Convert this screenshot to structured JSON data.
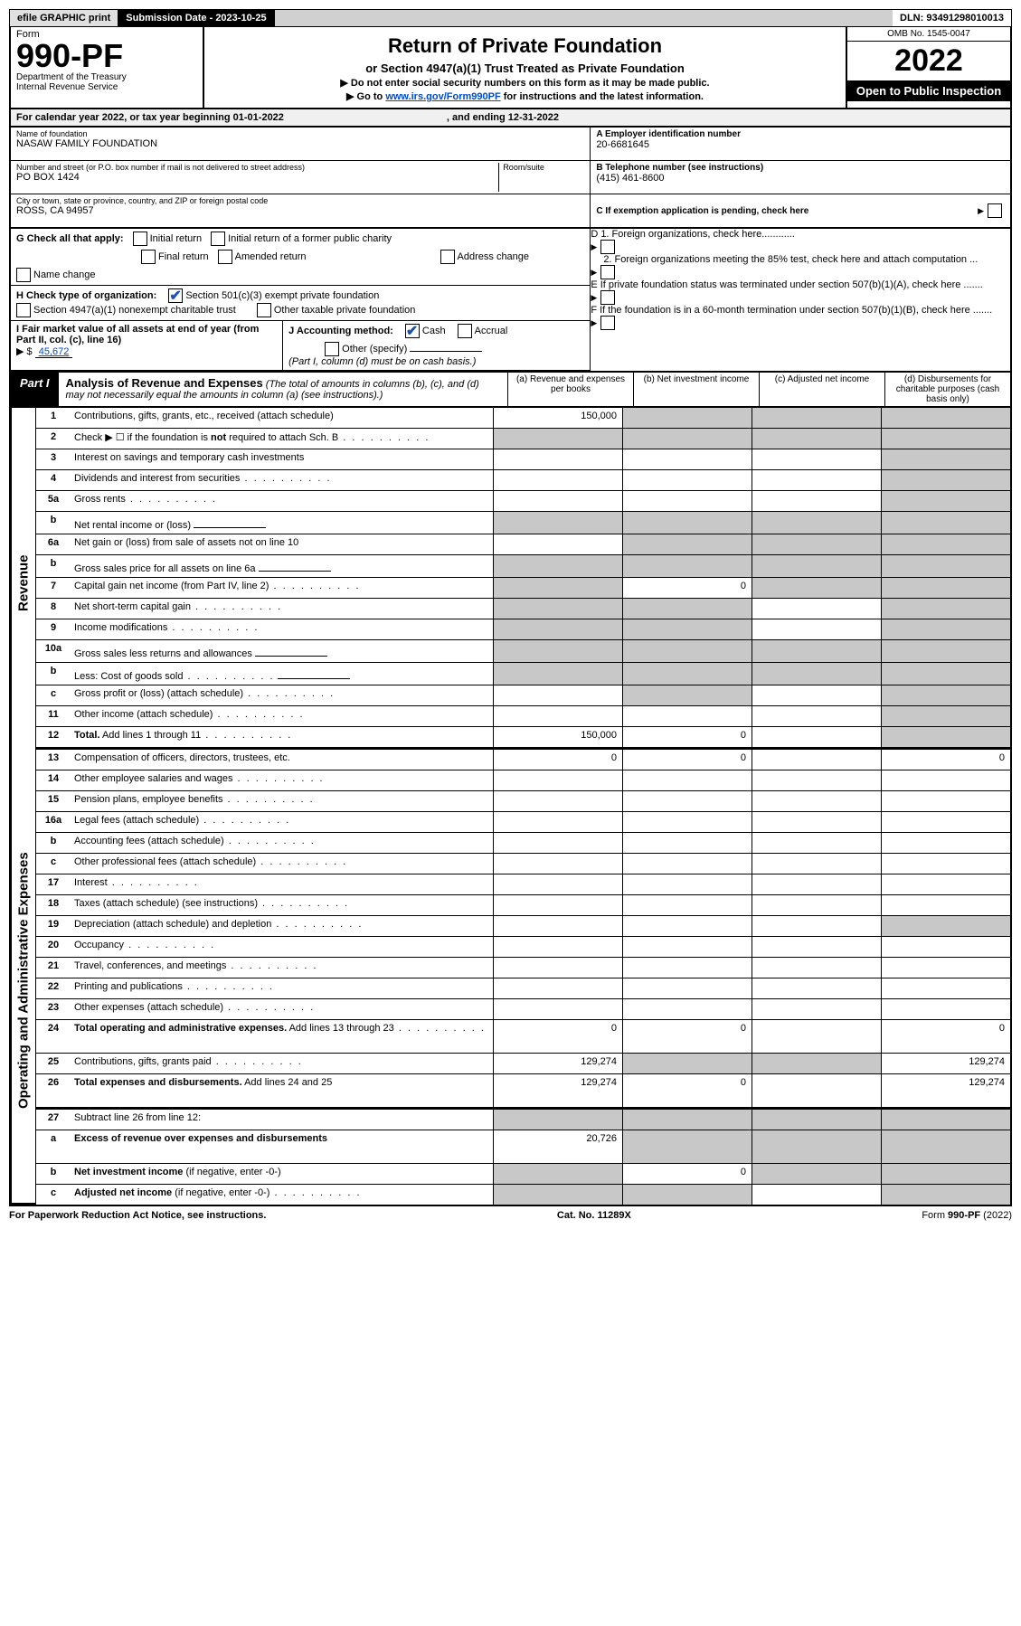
{
  "header_bar": {
    "efile": "efile GRAPHIC print",
    "submission_label": "Submission Date - 2023-10-25",
    "dln": "DLN: 93491298010013"
  },
  "form_top": {
    "form_word": "Form",
    "form_num": "990-PF",
    "dept1": "Department of the Treasury",
    "dept2": "Internal Revenue Service",
    "title": "Return of Private Foundation",
    "subtitle": "or Section 4947(a)(1) Trust Treated as Private Foundation",
    "note1": "▶ Do not enter social security numbers on this form as it may be made public.",
    "note2_pre": "▶ Go to ",
    "note2_link": "www.irs.gov/Form990PF",
    "note2_post": " for instructions and the latest information.",
    "omb": "OMB No. 1545-0047",
    "year": "2022",
    "open": "Open to Public Inspection"
  },
  "cal_year": {
    "text": "For calendar year 2022, or tax year beginning 01-01-2022",
    "ending": ", and ending 12-31-2022"
  },
  "info": {
    "name_lbl": "Name of foundation",
    "name_val": "NASAW FAMILY FOUNDATION",
    "addr_lbl": "Number and street (or P.O. box number if mail is not delivered to street address)",
    "addr_val": "PO BOX 1424",
    "room_lbl": "Room/suite",
    "city_lbl": "City or town, state or province, country, and ZIP or foreign postal code",
    "city_val": "ROSS, CA  94957",
    "a_lbl": "A Employer identification number",
    "a_val": "20-6681645",
    "b_lbl": "B Telephone number (see instructions)",
    "b_val": "(415) 461-8600",
    "c_lbl": "C If exemption application is pending, check here"
  },
  "g_section": {
    "g_label": "G Check all that apply:",
    "initial": "Initial return",
    "initial_former": "Initial return of a former public charity",
    "final": "Final return",
    "amended": "Amended return",
    "address": "Address change",
    "name_change": "Name change"
  },
  "h_section": {
    "label": "H Check type of organization:",
    "opt1": "Section 501(c)(3) exempt private foundation",
    "opt2": "Section 4947(a)(1) nonexempt charitable trust",
    "opt3": "Other taxable private foundation"
  },
  "i_section": {
    "label": "I Fair market value of all assets at end of year (from Part II, col. (c), line 16)",
    "value": "45,672",
    "prefix": "▶ $"
  },
  "j_section": {
    "label": "J Accounting method:",
    "cash": "Cash",
    "accrual": "Accrual",
    "other": "Other (specify)",
    "note": "(Part I, column (d) must be on cash basis.)"
  },
  "right_checks": {
    "d1": "D 1. Foreign organizations, check here............",
    "d2": "2. Foreign organizations meeting the 85% test, check here and attach computation ...",
    "e": "E  If private foundation status was terminated under section 507(b)(1)(A), check here .......",
    "f": "F  If the foundation is in a 60-month termination under section 507(b)(1)(B), check here ......."
  },
  "part1": {
    "label": "Part I",
    "title": "Analysis of Revenue and Expenses",
    "title_note": "(The total of amounts in columns (b), (c), and (d) may not necessarily equal the amounts in column (a) (see instructions).)",
    "col_a": "(a)   Revenue and expenses per books",
    "col_b": "(b)   Net investment income",
    "col_c": "(c)   Adjusted net income",
    "col_d": "(d)   Disbursements for charitable purposes (cash basis only)"
  },
  "side_labels": {
    "revenue": "Revenue",
    "expenses": "Operating and Administrative Expenses"
  },
  "rows": [
    {
      "num": "1",
      "desc": "Contributions, gifts, grants, etc., received (attach schedule)",
      "a": "150,000",
      "b": "shaded",
      "c": "shaded",
      "d": "shaded",
      "section": "rev"
    },
    {
      "num": "2",
      "desc": "Check ▶ ☐ if the foundation is <b>not</b> required to attach Sch. B",
      "a": "shaded",
      "b": "shaded",
      "c": "shaded",
      "d": "shaded",
      "section": "rev",
      "dots": true
    },
    {
      "num": "3",
      "desc": "Interest on savings and temporary cash investments",
      "a": "",
      "b": "",
      "c": "",
      "d": "shaded",
      "section": "rev"
    },
    {
      "num": "4",
      "desc": "Dividends and interest from securities",
      "a": "",
      "b": "",
      "c": "",
      "d": "shaded",
      "section": "rev",
      "dots": true
    },
    {
      "num": "5a",
      "desc": "Gross rents",
      "a": "",
      "b": "",
      "c": "",
      "d": "shaded",
      "section": "rev",
      "dots": true
    },
    {
      "num": "b",
      "desc": "Net rental income or (loss)",
      "a": "shaded",
      "b": "shaded",
      "c": "shaded",
      "d": "shaded",
      "section": "rev",
      "inline_input": true
    },
    {
      "num": "6a",
      "desc": "Net gain or (loss) from sale of assets not on line 10",
      "a": "",
      "b": "shaded",
      "c": "shaded",
      "d": "shaded",
      "section": "rev"
    },
    {
      "num": "b",
      "desc": "Gross sales price for all assets on line 6a",
      "a": "shaded",
      "b": "shaded",
      "c": "shaded",
      "d": "shaded",
      "section": "rev",
      "inline_input": true
    },
    {
      "num": "7",
      "desc": "Capital gain net income (from Part IV, line 2)",
      "a": "shaded",
      "b": "0",
      "c": "shaded",
      "d": "shaded",
      "section": "rev",
      "dots": true
    },
    {
      "num": "8",
      "desc": "Net short-term capital gain",
      "a": "shaded",
      "b": "shaded",
      "c": "",
      "d": "shaded",
      "section": "rev",
      "dots": true
    },
    {
      "num": "9",
      "desc": "Income modifications",
      "a": "shaded",
      "b": "shaded",
      "c": "",
      "d": "shaded",
      "section": "rev",
      "dots": true
    },
    {
      "num": "10a",
      "desc": "Gross sales less returns and allowances",
      "a": "shaded",
      "b": "shaded",
      "c": "shaded",
      "d": "shaded",
      "section": "rev",
      "inline_input": true
    },
    {
      "num": "b",
      "desc": "Less: Cost of goods sold",
      "a": "shaded",
      "b": "shaded",
      "c": "shaded",
      "d": "shaded",
      "section": "rev",
      "dots": true,
      "inline_input": true
    },
    {
      "num": "c",
      "desc": "Gross profit or (loss) (attach schedule)",
      "a": "",
      "b": "shaded",
      "c": "",
      "d": "shaded",
      "section": "rev",
      "dots": true
    },
    {
      "num": "11",
      "desc": "Other income (attach schedule)",
      "a": "",
      "b": "",
      "c": "",
      "d": "shaded",
      "section": "rev",
      "dots": true
    },
    {
      "num": "12",
      "desc": "<b>Total.</b> Add lines 1 through 11",
      "a": "150,000",
      "b": "0",
      "c": "",
      "d": "shaded",
      "section": "rev",
      "dots": true
    },
    {
      "num": "13",
      "desc": "Compensation of officers, directors, trustees, etc.",
      "a": "0",
      "b": "0",
      "c": "",
      "d": "0",
      "section": "exp"
    },
    {
      "num": "14",
      "desc": "Other employee salaries and wages",
      "a": "",
      "b": "",
      "c": "",
      "d": "",
      "section": "exp",
      "dots": true
    },
    {
      "num": "15",
      "desc": "Pension plans, employee benefits",
      "a": "",
      "b": "",
      "c": "",
      "d": "",
      "section": "exp",
      "dots": true
    },
    {
      "num": "16a",
      "desc": "Legal fees (attach schedule)",
      "a": "",
      "b": "",
      "c": "",
      "d": "",
      "section": "exp",
      "dots": true
    },
    {
      "num": "b",
      "desc": "Accounting fees (attach schedule)",
      "a": "",
      "b": "",
      "c": "",
      "d": "",
      "section": "exp",
      "dots": true
    },
    {
      "num": "c",
      "desc": "Other professional fees (attach schedule)",
      "a": "",
      "b": "",
      "c": "",
      "d": "",
      "section": "exp",
      "dots": true
    },
    {
      "num": "17",
      "desc": "Interest",
      "a": "",
      "b": "",
      "c": "",
      "d": "",
      "section": "exp",
      "dots": true
    },
    {
      "num": "18",
      "desc": "Taxes (attach schedule) (see instructions)",
      "a": "",
      "b": "",
      "c": "",
      "d": "",
      "section": "exp",
      "dots": true
    },
    {
      "num": "19",
      "desc": "Depreciation (attach schedule) and depletion",
      "a": "",
      "b": "",
      "c": "",
      "d": "shaded",
      "section": "exp",
      "dots": true
    },
    {
      "num": "20",
      "desc": "Occupancy",
      "a": "",
      "b": "",
      "c": "",
      "d": "",
      "section": "exp",
      "dots": true
    },
    {
      "num": "21",
      "desc": "Travel, conferences, and meetings",
      "a": "",
      "b": "",
      "c": "",
      "d": "",
      "section": "exp",
      "dots": true
    },
    {
      "num": "22",
      "desc": "Printing and publications",
      "a": "",
      "b": "",
      "c": "",
      "d": "",
      "section": "exp",
      "dots": true
    },
    {
      "num": "23",
      "desc": "Other expenses (attach schedule)",
      "a": "",
      "b": "",
      "c": "",
      "d": "",
      "section": "exp",
      "dots": true
    },
    {
      "num": "24",
      "desc": "<b>Total operating and administrative expenses.</b> Add lines 13 through 23",
      "a": "0",
      "b": "0",
      "c": "",
      "d": "0",
      "section": "exp",
      "dots": true,
      "tall": true
    },
    {
      "num": "25",
      "desc": "Contributions, gifts, grants paid",
      "a": "129,274",
      "b": "shaded",
      "c": "shaded",
      "d": "129,274",
      "section": "exp",
      "dots": true
    },
    {
      "num": "26",
      "desc": "<b>Total expenses and disbursements.</b> Add lines 24 and 25",
      "a": "129,274",
      "b": "0",
      "c": "",
      "d": "129,274",
      "section": "exp",
      "tall": true
    },
    {
      "num": "27",
      "desc": "Subtract line 26 from line 12:",
      "a": "shaded",
      "b": "shaded",
      "c": "shaded",
      "d": "shaded",
      "section": "non"
    },
    {
      "num": "a",
      "desc": "<b>Excess of revenue over expenses and disbursements</b>",
      "a": "20,726",
      "b": "shaded",
      "c": "shaded",
      "d": "shaded",
      "section": "non",
      "tall": true
    },
    {
      "num": "b",
      "desc": "<b>Net investment income</b> (if negative, enter -0-)",
      "a": "shaded",
      "b": "0",
      "c": "shaded",
      "d": "shaded",
      "section": "non"
    },
    {
      "num": "c",
      "desc": "<b>Adjusted net income</b> (if negative, enter -0-)",
      "a": "shaded",
      "b": "shaded",
      "c": "",
      "d": "shaded",
      "section": "non",
      "dots": true
    }
  ],
  "footer": {
    "left": "For Paperwork Reduction Act Notice, see instructions.",
    "center": "Cat. No. 11289X",
    "right": "Form 990-PF (2022)"
  }
}
